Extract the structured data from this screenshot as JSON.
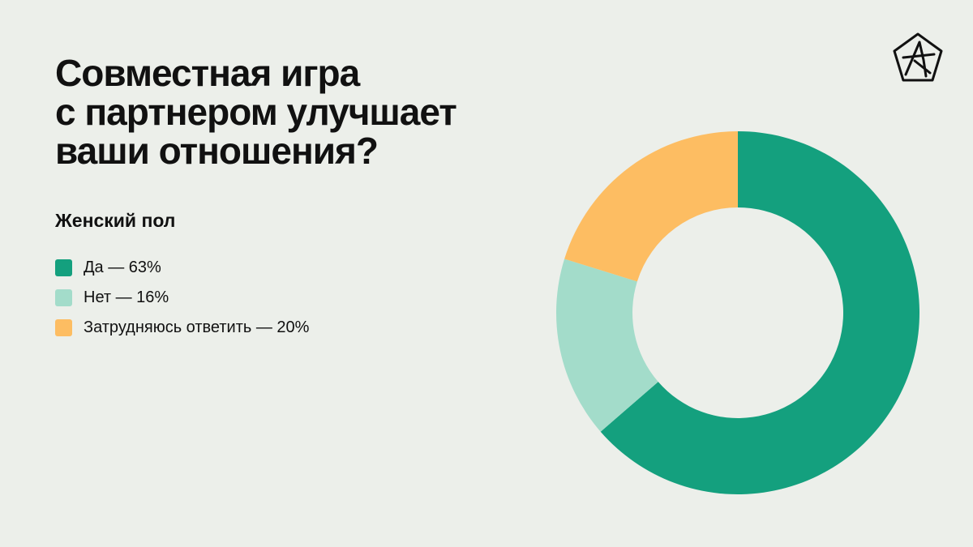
{
  "title_lines": [
    "Совместная игра",
    "с партнером улучшает",
    "ваши отношения?"
  ],
  "subtitle": "Женский пол",
  "logo_icon": "star-pentagon-logo-icon",
  "colors": {
    "background": "#ecefea",
    "yes": "#14a07e",
    "no": "#a3dcca",
    "unsure": "#fdbd62",
    "text": "#111111"
  },
  "legend": [
    {
      "label": "Да — 63%",
      "color": "#14a07e"
    },
    {
      "label": "Нет — 16%",
      "color": "#a3dcca"
    },
    {
      "label": "Затрудняюсь ответить — 20%",
      "color": "#fdbd62"
    }
  ],
  "chart_data": {
    "type": "pie",
    "donut": true,
    "title": "Совместная игра с партнером улучшает ваши отношения?",
    "subtitle": "Женский пол",
    "categories": [
      "Да",
      "Нет",
      "Затрудняюсь ответить"
    ],
    "values": [
      63,
      16,
      20
    ],
    "unit": "%",
    "colors": [
      "#14a07e",
      "#a3dcca",
      "#fdbd62"
    ],
    "start": "12 o'clock",
    "direction": "clockwise",
    "legend_position": "left"
  }
}
